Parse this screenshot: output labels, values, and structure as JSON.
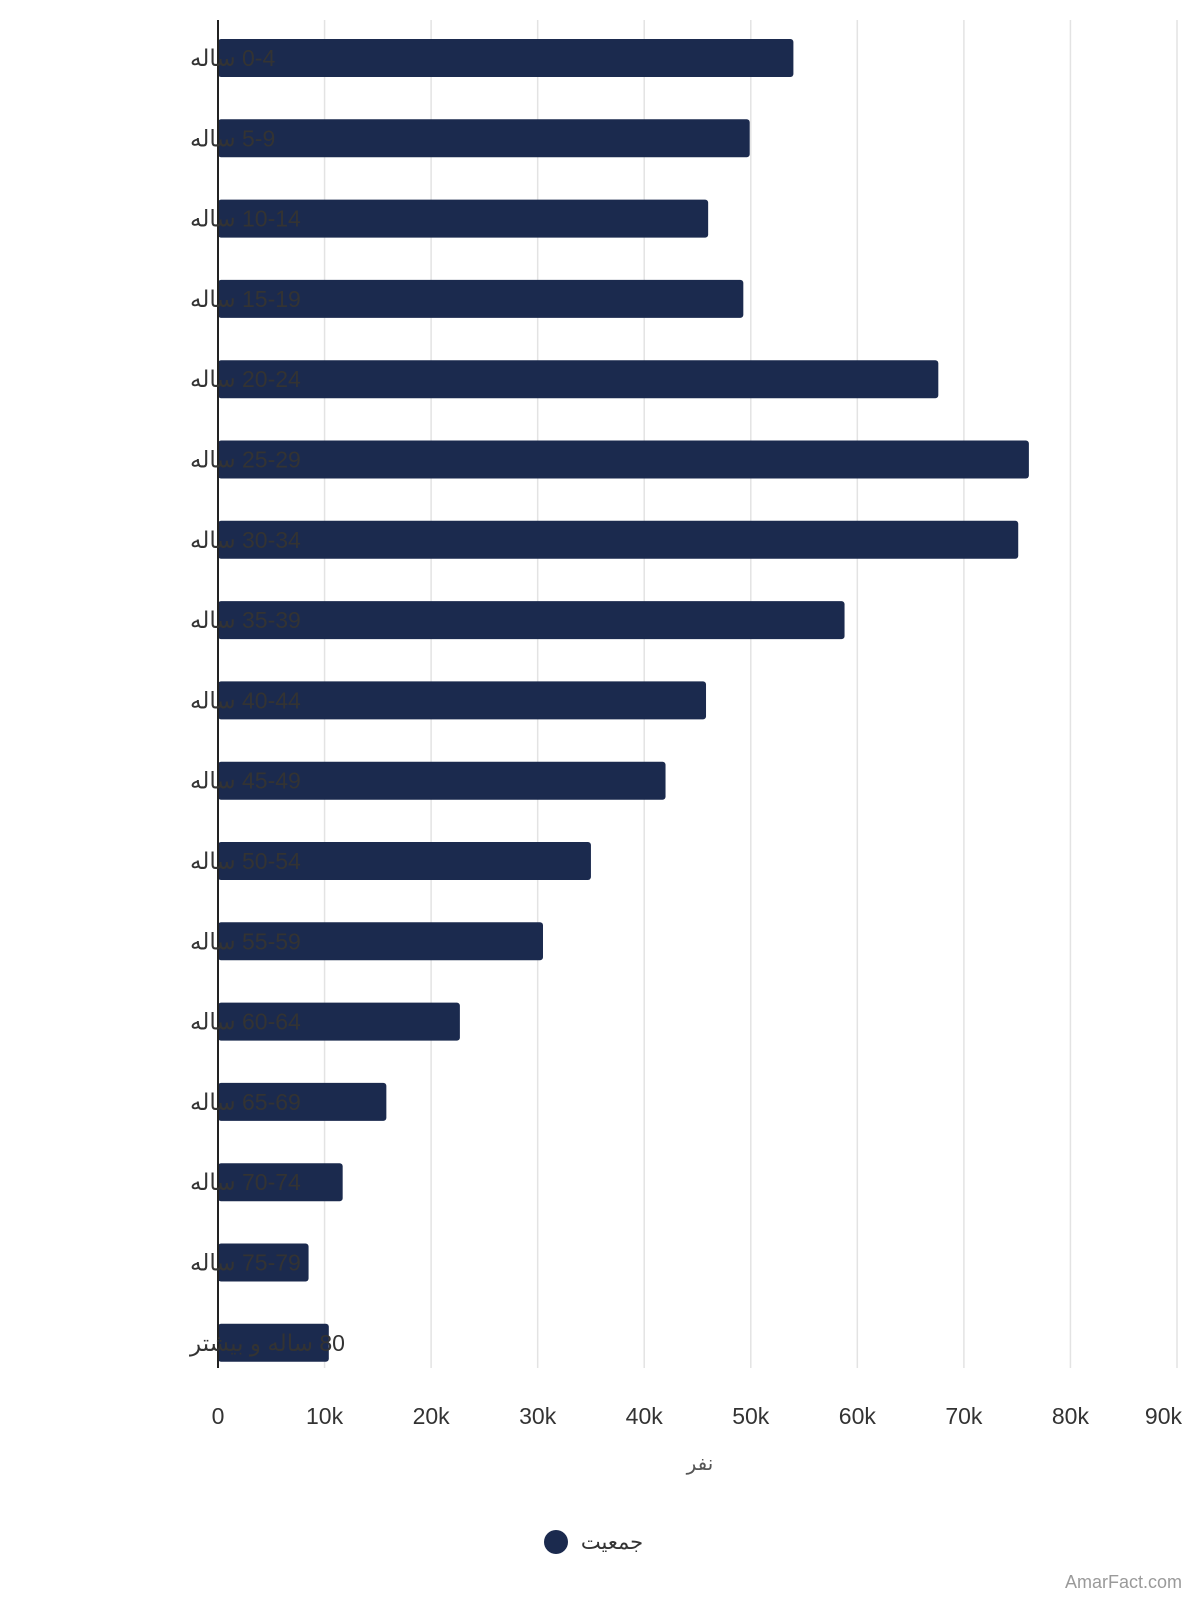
{
  "chart_data": {
    "type": "bar",
    "orientation": "horizontal",
    "categories": [
      "0-4 ساله",
      "5-9 ساله",
      "10-14 ساله",
      "15-19 ساله",
      "20-24 ساله",
      "25-29 ساله",
      "30-34 ساله",
      "35-39 ساله",
      "40-44 ساله",
      "45-49 ساله",
      "50-54 ساله",
      "55-59 ساله",
      "60-64 ساله",
      "65-69 ساله",
      "70-74 ساله",
      "75-79 ساله",
      "80 ساله و بیشتر"
    ],
    "series": [
      {
        "name": "جمعیت",
        "color": "#1b2a4e",
        "values": [
          54000,
          49900,
          46000,
          49300,
          67600,
          76100,
          75100,
          58800,
          45800,
          42000,
          35000,
          30500,
          22700,
          15800,
          11700,
          8500,
          10400
        ]
      }
    ],
    "xlabel": "نفر",
    "ylabel": "",
    "xlim": [
      0,
      90000
    ],
    "xticks": [
      0,
      10000,
      20000,
      30000,
      40000,
      50000,
      60000,
      70000,
      80000,
      90000
    ],
    "xtick_labels": [
      "0",
      "10k",
      "20k",
      "30k",
      "40k",
      "50k",
      "60k",
      "70k",
      "80k",
      "90k"
    ],
    "grid": "vertical",
    "legend": "bottom-center",
    "title": ""
  },
  "watermark": "AmarFact.com",
  "colors": {
    "bar": "#1b2a4e",
    "grid": "#e3e3e3",
    "axis": "#222222"
  }
}
